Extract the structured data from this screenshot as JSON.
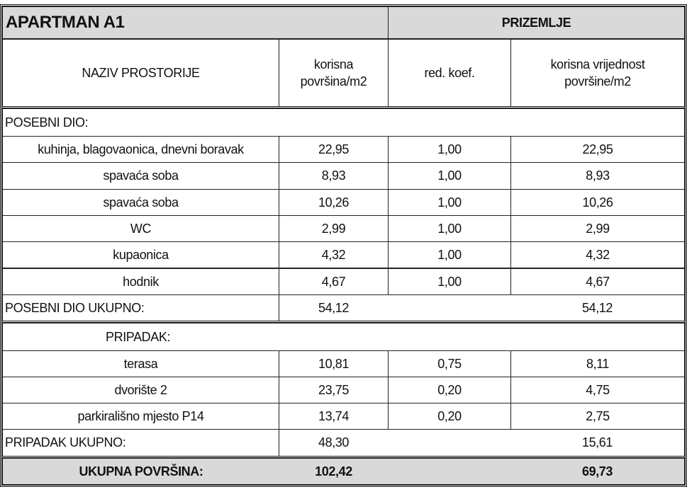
{
  "title": "APARTMAN A1",
  "floor": "PRIZEMLJE",
  "headers": {
    "name": "NAZIV PROSTORIJE",
    "area": "korisna površina/m2",
    "coef": "red. koef.",
    "value": "korisna vrijednost površine/m2"
  },
  "posebni": {
    "label": "POSEBNI DIO:",
    "rows": [
      {
        "name": "kuhinja, blagovaonica, dnevni boravak",
        "area": "22,95",
        "coef": "1,00",
        "value": "22,95"
      },
      {
        "name": "spavaća soba",
        "area": "8,93",
        "coef": "1,00",
        "value": "8,93"
      },
      {
        "name": "spavaća soba",
        "area": "10,26",
        "coef": "1,00",
        "value": "10,26"
      },
      {
        "name": "WC",
        "area": "2,99",
        "coef": "1,00",
        "value": "2,99"
      },
      {
        "name": "kupaonica",
        "area": "4,32",
        "coef": "1,00",
        "value": "4,32"
      },
      {
        "name": "hodnik",
        "area": "4,67",
        "coef": "1,00",
        "value": "4,67"
      }
    ],
    "total_label": "POSEBNI DIO UKUPNO:",
    "total_area": "54,12",
    "total_value": "54,12"
  },
  "pripadak": {
    "label": "PRIPADAK:",
    "rows": [
      {
        "name": "terasa",
        "area": "10,81",
        "coef": "0,75",
        "value": "8,11"
      },
      {
        "name": "dvorište 2",
        "area": "23,75",
        "coef": "0,20",
        "value": "4,75"
      },
      {
        "name": "parkirališno mjesto P14",
        "area": "13,74",
        "coef": "0,20",
        "value": "2,75"
      }
    ],
    "total_label": "PRIPADAK UKUPNO:",
    "total_area": "48,30",
    "total_value": "15,61"
  },
  "grand_total": {
    "label": "UKUPNA POVRŠINA:",
    "area": "102,42",
    "value": "69,73"
  },
  "colors": {
    "header_bg": "#d9d9d9",
    "border": "#111111"
  }
}
